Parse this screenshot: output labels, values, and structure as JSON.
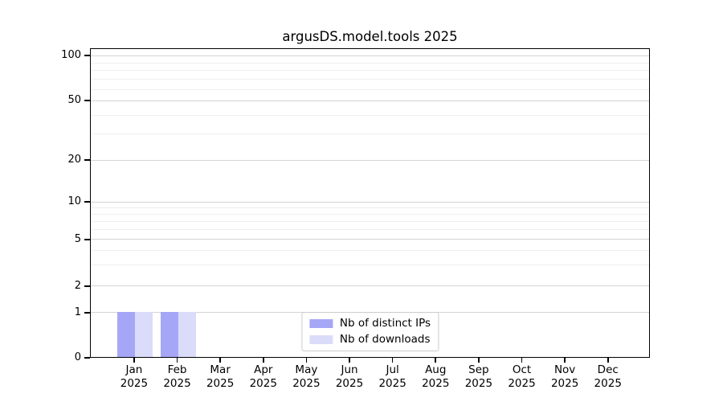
{
  "chart_data": {
    "type": "bar",
    "title": "argusDS.model.tools 2025",
    "categories": [
      "Jan 2025",
      "Feb 2025",
      "Mar 2025",
      "Apr 2025",
      "May 2025",
      "Jun 2025",
      "Jul 2025",
      "Aug 2025",
      "Sep 2025",
      "Oct 2025",
      "Nov 2025",
      "Dec 2025"
    ],
    "series": [
      {
        "name": "Nb of distinct IPs",
        "color": "#a6a6f7",
        "values": [
          1,
          1,
          0,
          0,
          0,
          0,
          0,
          0,
          0,
          0,
          0,
          0
        ]
      },
      {
        "name": "Nb of downloads",
        "color": "#dbdbfa",
        "values": [
          1,
          1,
          0,
          0,
          0,
          0,
          0,
          0,
          0,
          0,
          0,
          0
        ]
      }
    ],
    "yscale": "symlog",
    "ylim": [
      0,
      100
    ],
    "yticks": [
      0,
      1,
      2,
      5,
      10,
      20,
      50,
      100
    ],
    "grid": "on",
    "legend_position": "lower center"
  },
  "axes": {
    "y_tick_labels": [
      "100",
      "50",
      "20",
      "10",
      "5",
      "2",
      "1",
      "0"
    ],
    "x_tick_labels": [
      [
        "Jan",
        "2025"
      ],
      [
        "Feb",
        "2025"
      ],
      [
        "Mar",
        "2025"
      ],
      [
        "Apr",
        "2025"
      ],
      [
        "May",
        "2025"
      ],
      [
        "Jun",
        "2025"
      ],
      [
        "Jul",
        "2025"
      ],
      [
        "Aug",
        "2025"
      ],
      [
        "Sep",
        "2025"
      ],
      [
        "Oct",
        "2025"
      ],
      [
        "Nov",
        "2025"
      ],
      [
        "Dec",
        "2025"
      ]
    ]
  },
  "legend": {
    "items": [
      {
        "label": "Nb of distinct IPs",
        "color": "#a6a6f7"
      },
      {
        "label": "Nb of downloads",
        "color": "#dbdbfa"
      }
    ]
  }
}
